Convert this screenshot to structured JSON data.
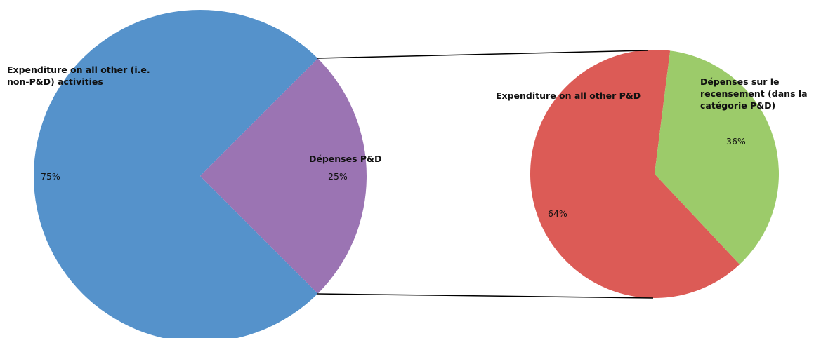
{
  "chart_data": [
    {
      "type": "pie",
      "categories": [
        "Expenditure on all other (i.e. non-P&D)  activities",
        "Dépenses  P&D"
      ],
      "values": [
        75,
        25
      ],
      "value_labels": [
        "75%",
        "25%"
      ],
      "colors": [
        "#5592cb",
        "#9b74b3"
      ]
    },
    {
      "type": "pie",
      "categories": [
        "Expenditure on all other P&D",
        "Dépenses sur le recensement (dans la catégorie P&D)"
      ],
      "values": [
        64,
        36
      ],
      "value_labels": [
        "64%",
        "36%"
      ],
      "colors": [
        "#dc5b56",
        "#9ccb6a"
      ]
    }
  ]
}
